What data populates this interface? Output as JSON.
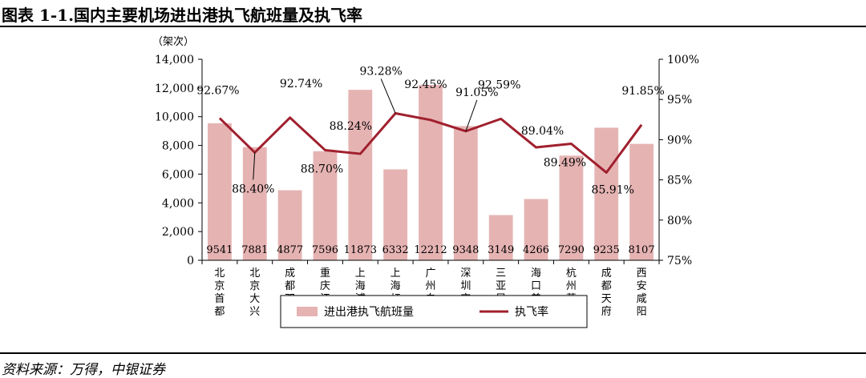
{
  "title": "图表 1-1.国内主要机场进出港执飞航班量及执飞率",
  "source": "资料来源：万得，中银证券",
  "chart_data": {
    "type": "bar",
    "categories": [
      "北京首都",
      "北京大兴",
      "成都双流",
      "重庆江北",
      "上海浦东",
      "上海虹桥",
      "广州白云",
      "深圳宝安",
      "三亚凤凰",
      "海口美兰",
      "杭州萧山",
      "成都天府",
      "西安咸阳"
    ],
    "series": [
      {
        "name": "进出港执飞航班量",
        "type": "bar",
        "axis": "left",
        "color": "#e6b3b3",
        "values": [
          9541,
          7881,
          4877,
          7596,
          11873,
          6332,
          12212,
          9348,
          3149,
          4266,
          7290,
          9235,
          8107
        ],
        "labels": [
          "9541",
          "7881",
          "4877",
          "7596",
          "11873",
          "6332",
          "12212",
          "9348",
          "3149",
          "4266",
          "7290",
          "9235",
          "8107"
        ]
      },
      {
        "name": "执飞率",
        "type": "line",
        "axis": "right",
        "color": "#a0202e",
        "values": [
          92.67,
          88.4,
          92.74,
          88.7,
          88.24,
          93.28,
          92.45,
          91.05,
          92.59,
          89.04,
          89.49,
          85.91,
          91.85
        ],
        "labels": [
          "92.67%",
          "88.40%",
          "92.74%",
          "88.70%",
          "88.24%",
          "93.28%",
          "92.45%",
          "91.05%",
          "92.59%",
          "89.04%",
          "89.49%",
          "85.91%",
          "91.85%"
        ]
      }
    ],
    "y_left": {
      "unit_label": "（架次）",
      "ylim": [
        0,
        14000
      ],
      "ticks": [
        "0",
        "2,000",
        "4,000",
        "6,000",
        "8,000",
        "10,000",
        "12,000",
        "14,000"
      ]
    },
    "y_right": {
      "ylim": [
        75,
        100
      ],
      "ticks": [
        "75%",
        "80%",
        "85%",
        "90%",
        "95%",
        "100%"
      ]
    },
    "grid": false,
    "legend_position": "bottom"
  }
}
